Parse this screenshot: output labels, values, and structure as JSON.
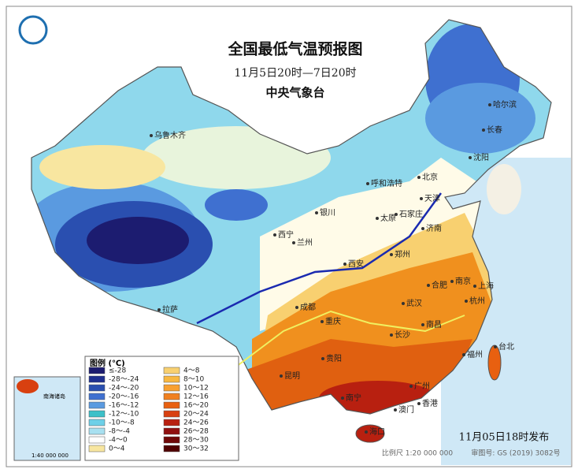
{
  "header": {
    "title": "全国最低气温预报图",
    "subtitle": "11月5日20时—7日20时",
    "issuer": "中央气象台"
  },
  "cities": [
    "乌鲁木齐",
    "哈尔滨",
    "长春",
    "沈阳",
    "北京",
    "天津",
    "呼和浩特",
    "石家庄",
    "太原",
    "银川",
    "济南",
    "西宁",
    "兰州",
    "郑州",
    "西安",
    "南京",
    "合肥",
    "上海",
    "杭州",
    "武汉",
    "成都",
    "拉萨",
    "重庆",
    "南昌",
    "长沙",
    "贵阳",
    "福州",
    "台北",
    "昆明",
    "南宁",
    "广州",
    "香港",
    "澳门",
    "海口"
  ],
  "legend": {
    "title": "图例 (℃)",
    "items": [
      {
        "label": "≤-28",
        "color": "#1c1c70"
      },
      {
        "label": "-28～-24",
        "color": "#1f3090"
      },
      {
        "label": "-24～-20",
        "color": "#2a4fb0"
      },
      {
        "label": "-20～-16",
        "color": "#3f70d0"
      },
      {
        "label": "-16～-12",
        "color": "#5a9ae0"
      },
      {
        "label": "-12～-10",
        "color": "#3cc0c8"
      },
      {
        "label": "-10～-8",
        "color": "#6dd0e8"
      },
      {
        "label": "-8～-4",
        "color": "#a8e0f0"
      },
      {
        "label": "-4～0",
        "color": "#ffffff"
      },
      {
        "label": "0～4",
        "color": "#f8e6a0"
      },
      {
        "label": "4～8",
        "color": "#f8d070"
      },
      {
        "label": "8～10",
        "color": "#f8b840"
      },
      {
        "label": "10～12",
        "color": "#f8a030"
      },
      {
        "label": "12～16",
        "color": "#f08020"
      },
      {
        "label": "16～20",
        "color": "#e86010"
      },
      {
        "label": "20～24",
        "color": "#d84010"
      },
      {
        "label": "24～26",
        "color": "#b82010"
      },
      {
        "label": "26～28",
        "color": "#901010"
      },
      {
        "label": "28～30",
        "color": "#700808"
      },
      {
        "label": "30～32",
        "color": "#500000"
      }
    ]
  },
  "inset": {
    "title": "南海诸岛",
    "scale": "1:40 000 000"
  },
  "footer": {
    "issued": "11月05日18时发布",
    "scale": "比例尺 1:20 000 000",
    "approval": "审图号: GS (2019) 3082号"
  }
}
